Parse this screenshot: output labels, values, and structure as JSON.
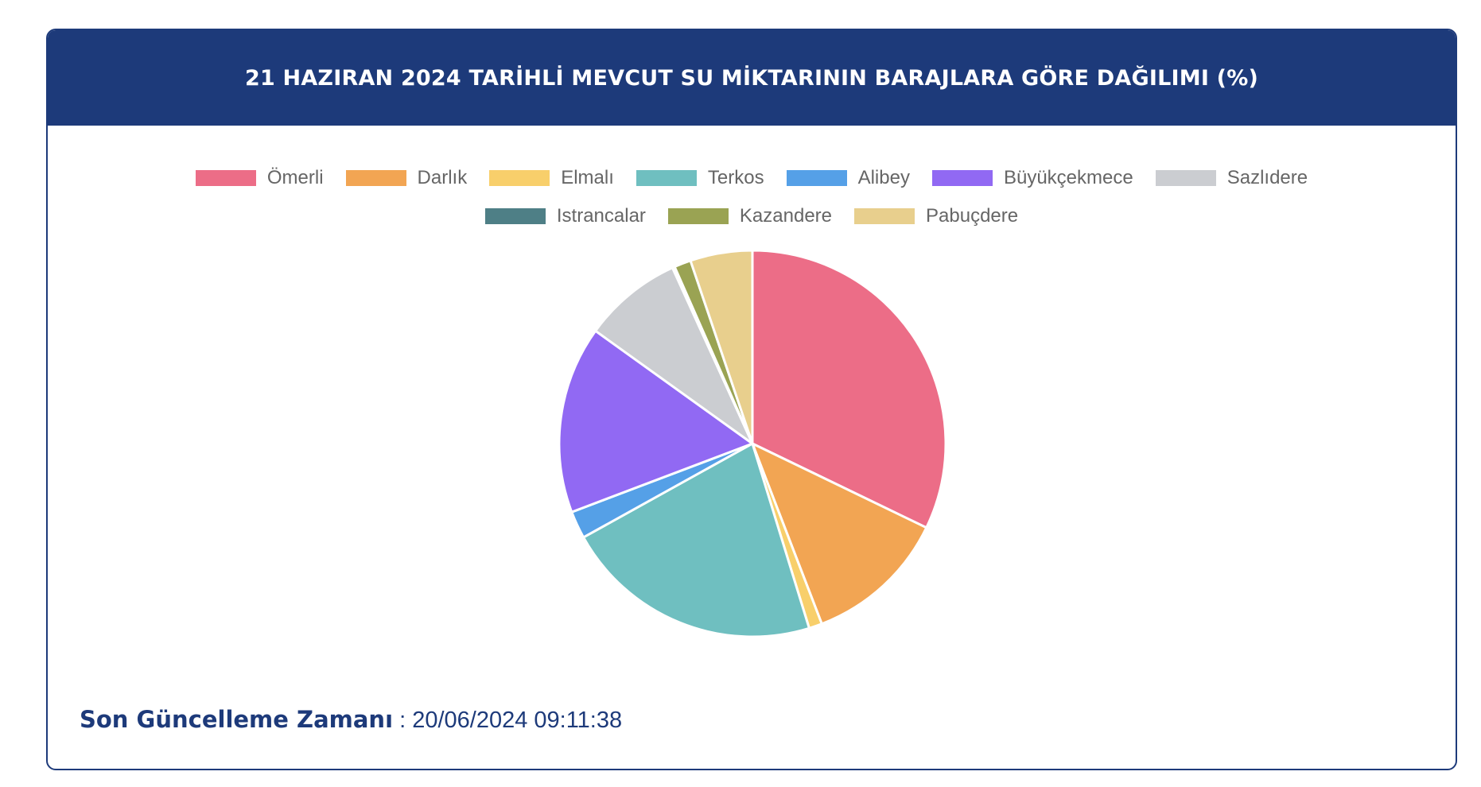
{
  "header": {
    "title": "21 HAZIRAN 2024 TARİHLİ MEVCUT SU MİKTARININ BARAJLARA GÖRE DAĞILIMI (%)"
  },
  "chart_data": {
    "type": "pie",
    "legend_position": "top",
    "categories": [
      "Ömerli",
      "Darlık",
      "Elmalı",
      "Terkos",
      "Alibey",
      "Büyükçekmece",
      "Sazlıdere",
      "Istrancalar",
      "Kazandere",
      "Pabuçdere"
    ],
    "values": [
      32.2,
      12.0,
      1.1,
      21.7,
      2.3,
      15.7,
      8.3,
      0.2,
      1.4,
      5.2
    ],
    "colors": [
      "#ec6d87",
      "#f2a553",
      "#f8cf6b",
      "#6fbfc0",
      "#55a0e7",
      "#9169f3",
      "#cbcdd1",
      "#4e7f86",
      "#9aa353",
      "#e8cf8d"
    ]
  },
  "footer": {
    "label": "Son Güncelleme Zamanı",
    "separator": " : ",
    "value": "20/06/2024 09:11:38"
  }
}
